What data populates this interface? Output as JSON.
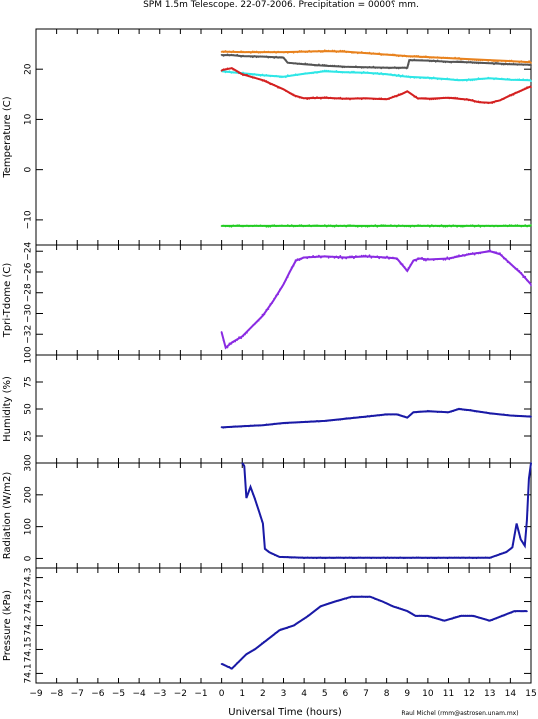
{
  "title": "SPM 1.5m Telescope. 22-07-2006. Precipitation = 0000⸮ mm.",
  "credit": "Raul Michel (rmm@astrosen.unam.mx)",
  "x_axis": {
    "label": "Universal Time (hours)",
    "range": [
      -9,
      15
    ],
    "ticks": [
      -9,
      -8,
      -7,
      -6,
      -5,
      -4,
      -3,
      -2,
      -1,
      0,
      1,
      2,
      3,
      4,
      5,
      6,
      7,
      8,
      9,
      10,
      11,
      12,
      13,
      14,
      15
    ],
    "tick_labels": [
      "−9",
      "−8",
      "−7",
      "−6",
      "−5",
      "−4",
      "−3",
      "−2",
      "−1",
      "0",
      "1",
      "2",
      "3",
      "4",
      "5",
      "6",
      "7",
      "8",
      "9",
      "10",
      "11",
      "12",
      "13",
      "14",
      "15"
    ]
  },
  "chart_data": [
    {
      "type": "scatter",
      "ylabel": "Temperature (C)",
      "ylim": [
        -15,
        28
      ],
      "yticks": [
        -10,
        0,
        10,
        20
      ],
      "ytick_labels": [
        "−10",
        "0",
        "10",
        "20"
      ],
      "series": [
        {
          "color": "#e8821e",
          "x": [
            0,
            1,
            2,
            3,
            4,
            5,
            6,
            7,
            8,
            9,
            10,
            11,
            12,
            13,
            14,
            15
          ],
          "y": [
            23.5,
            23.4,
            23.4,
            23.4,
            23.5,
            23.6,
            23.5,
            23.2,
            22.9,
            22.6,
            22.4,
            22.2,
            22.0,
            21.8,
            21.6,
            21.4
          ]
        },
        {
          "color": "#555555",
          "x": [
            0,
            0.5,
            1,
            2,
            3,
            3.2,
            4,
            5,
            6,
            7,
            8,
            9,
            9.1,
            10,
            11,
            12,
            13,
            14,
            15
          ],
          "y": [
            22.8,
            22.8,
            22.6,
            22.5,
            22.3,
            21.3,
            21.0,
            20.7,
            20.5,
            20.4,
            20.3,
            20.3,
            21.8,
            21.7,
            21.5,
            21.4,
            21.2,
            21.0,
            20.9
          ]
        },
        {
          "color": "#2ee6e6",
          "x": [
            0,
            1,
            2,
            3,
            4,
            5,
            6,
            7,
            8,
            9,
            10,
            11,
            11.5,
            12,
            13,
            14,
            15
          ],
          "y": [
            19.6,
            19.2,
            18.8,
            18.5,
            19.1,
            19.6,
            19.4,
            19.3,
            19.0,
            18.5,
            18.3,
            18.0,
            17.8,
            17.9,
            18.2,
            17.9,
            17.8
          ]
        },
        {
          "color": "#d42020",
          "x": [
            0,
            0.5,
            1,
            2,
            3,
            3.5,
            4,
            5,
            6,
            7,
            8,
            8.7,
            9,
            9.5,
            10,
            11,
            12,
            12.5,
            13,
            13.5,
            14,
            15
          ],
          "y": [
            19.8,
            20.2,
            19.0,
            17.8,
            16.0,
            14.8,
            14.2,
            14.3,
            14.1,
            14.2,
            14.0,
            15.0,
            15.6,
            14.2,
            14.1,
            14.3,
            13.9,
            13.4,
            13.3,
            13.8,
            14.8,
            16.6
          ]
        },
        {
          "color": "#22cc22",
          "x": [
            0,
            5,
            10,
            15
          ],
          "y": [
            -11.2,
            -11.2,
            -11.2,
            -11.2
          ]
        }
      ]
    },
    {
      "type": "scatter",
      "ylabel": "Tpri-Tdome (C)",
      "ylim": [
        -34,
        -23.4
      ],
      "yticks": [
        -32,
        -30,
        -28,
        -26,
        -24
      ],
      "ytick_labels": [
        "−32",
        "−30",
        "−28",
        "−26",
        "−24"
      ],
      "series": [
        {
          "color": "#8a2be2",
          "x": [
            0,
            0.2,
            0.5,
            1,
            1.5,
            2,
            2.5,
            3,
            3.3,
            3.6,
            4,
            5,
            6,
            7,
            8,
            8.5,
            9,
            9.3,
            9.6,
            10,
            11,
            12,
            13,
            13.5,
            14,
            14.5,
            15
          ],
          "y": [
            -31.8,
            -33.3,
            -32.8,
            -32.2,
            -31.2,
            -30.2,
            -28.8,
            -27.2,
            -26.0,
            -24.9,
            -24.6,
            -24.5,
            -24.6,
            -24.5,
            -24.6,
            -24.7,
            -25.9,
            -24.9,
            -24.7,
            -24.8,
            -24.7,
            -24.3,
            -24.0,
            -24.3,
            -25.2,
            -26.1,
            -27.2
          ]
        }
      ]
    },
    {
      "type": "scatter",
      "ylabel": "Humidity (%)",
      "ylim": [
        0,
        100
      ],
      "yticks": [
        25,
        50,
        75,
        100
      ],
      "ytick_labels": [
        "25",
        "50",
        "75",
        "100"
      ],
      "series": [
        {
          "color": "#1a1aa6",
          "x": [
            0,
            1,
            2,
            3,
            4,
            5,
            6,
            7,
            8,
            8.5,
            9,
            9.3,
            10,
            11,
            11.5,
            12,
            13,
            14,
            15
          ],
          "y": [
            33,
            34,
            35,
            37,
            38,
            39,
            41,
            43,
            45,
            45,
            42,
            47,
            48,
            47,
            50,
            49,
            46,
            44,
            43
          ]
        }
      ]
    },
    {
      "type": "scatter",
      "ylabel": "Radiation (W/m2)",
      "ylim": [
        -30,
        300
      ],
      "yticks": [
        0,
        100,
        200,
        300
      ],
      "ytick_labels": [
        "0",
        "100",
        "200",
        "300"
      ],
      "series": [
        {
          "color": "#1a1aa6",
          "x": [
            1.0,
            1.1,
            1.2,
            1.4,
            1.6,
            1.8,
            2.0,
            2.1,
            2.3,
            2.8,
            4,
            6,
            8,
            10,
            12,
            13,
            13.8,
            14.0,
            14.1,
            14.3,
            14.5,
            14.7,
            14.8,
            14.9,
            15.0
          ],
          "y": [
            300,
            290,
            190,
            225,
            190,
            150,
            110,
            30,
            20,
            5,
            2,
            2,
            2,
            2,
            2,
            2,
            20,
            30,
            35,
            110,
            60,
            40,
            120,
            250,
            300
          ]
        }
      ]
    },
    {
      "type": "scatter",
      "ylabel": "Pressure (kPa)",
      "ylim": [
        74.08,
        74.32
      ],
      "yticks": [
        74.1,
        74.15,
        74.2,
        74.25,
        74.3
      ],
      "ytick_labels": [
        "74.1",
        "74.15",
        "74.2",
        "74.25",
        "74.3"
      ],
      "series": [
        {
          "color": "#1a1aa6",
          "x": [
            0,
            0.5,
            1.2,
            1.6,
            2.2,
            2.8,
            3.5,
            4.2,
            4.8,
            5.5,
            6.3,
            7.2,
            7.8,
            8.3,
            9.0,
            9.4,
            10,
            10.8,
            11.6,
            12.2,
            13.0,
            13.6,
            14.2,
            14.8
          ],
          "y": [
            74.12,
            74.11,
            74.14,
            74.15,
            74.17,
            74.19,
            74.2,
            74.22,
            74.24,
            74.25,
            74.26,
            74.26,
            74.25,
            74.24,
            74.23,
            74.22,
            74.22,
            74.21,
            74.22,
            74.22,
            74.21,
            74.22,
            74.23,
            74.23
          ]
        }
      ]
    }
  ]
}
